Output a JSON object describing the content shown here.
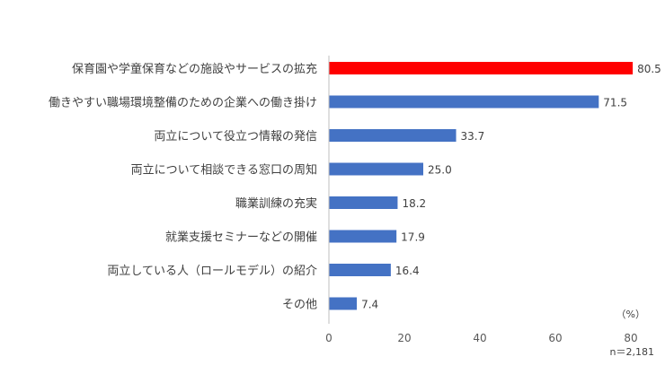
{
  "chart_data": {
    "type": "bar",
    "orientation": "horizontal",
    "categories": [
      "保育園や学童保育などの施設やサービスの拡充",
      "働きやすい職場環境整備のための企業への働き掛け",
      "両立について役立つ情報の発信",
      "両立について相談できる窓口の周知",
      "職業訓練の充実",
      "就業支援セミナーなどの開催",
      "両立している人（ロールモデル）の紹介",
      "その他"
    ],
    "values": [
      80.5,
      71.5,
      33.7,
      25.0,
      18.2,
      17.9,
      16.4,
      7.4
    ],
    "value_labels": [
      "80.5",
      "71.5",
      "33.7",
      "25.0",
      "18.2",
      "17.9",
      "16.4",
      "7.4"
    ],
    "highlight_index": 0,
    "colors": {
      "bar": "#4472C4",
      "highlight": "#FF0000",
      "axis": "#BFBFBF"
    },
    "xlim": [
      0,
      80
    ],
    "xticks": [
      0,
      20,
      40,
      60,
      80
    ],
    "unit_label": "（%）",
    "sample_note": "n＝2,181",
    "grid": false,
    "legend": "none"
  }
}
